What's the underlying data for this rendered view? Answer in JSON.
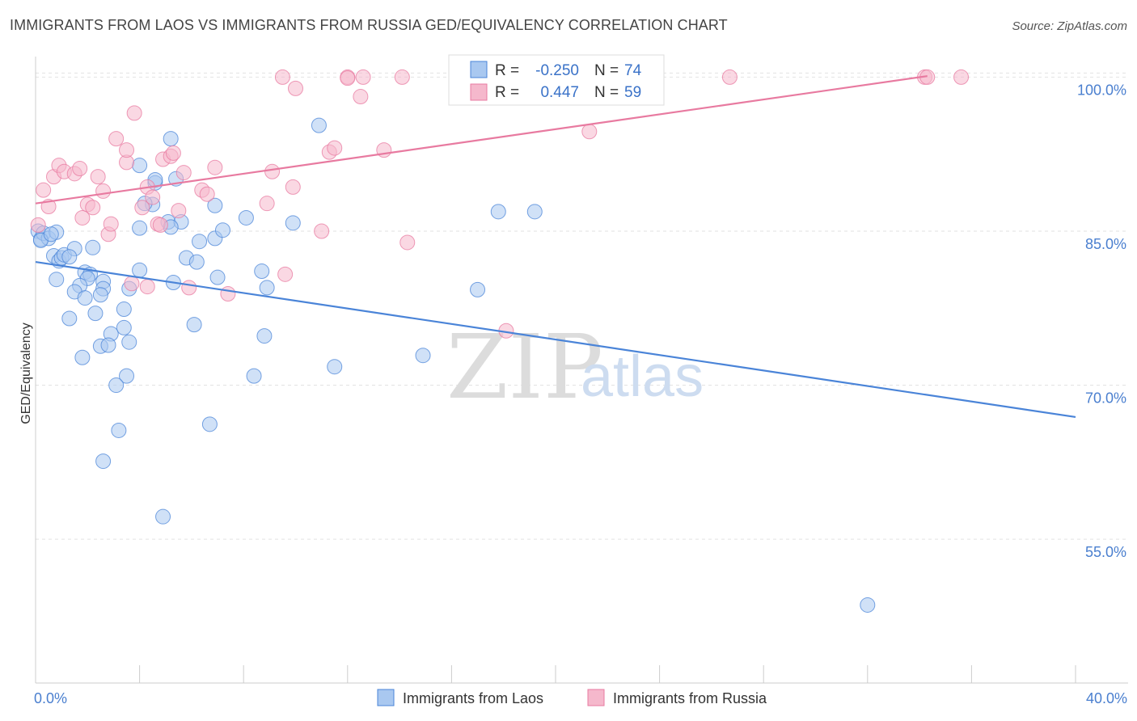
{
  "title": "IMMIGRANTS FROM LAOS VS IMMIGRANTS FROM RUSSIA GED/EQUIVALENCY CORRELATION CHART",
  "source": "Source: ZipAtlas.com",
  "watermark": {
    "zip": "ZIP",
    "atlas": "atlas"
  },
  "colors": {
    "laos": "#4a84d8",
    "russia": "#e87aa0",
    "laos_fill": "#a9c8f0",
    "russia_fill": "#f5b8cc",
    "axis_text": "#4a7fcf"
  },
  "stats": {
    "laos": {
      "r_label": "R =",
      "r": "-0.250",
      "n_label": "N =",
      "n": "74"
    },
    "russia": {
      "r_label": "R =",
      "r": "0.447",
      "n_label": "N =",
      "n": "59"
    }
  },
  "legend": {
    "laos": "Immigrants from Laos",
    "russia": "Immigrants from Russia"
  },
  "chart_data": {
    "type": "scatter",
    "xlabel": "",
    "ylabel": "GED/Equivalency",
    "xlim": [
      0,
      40
    ],
    "ylim": [
      41,
      102
    ],
    "x_tick_labels": [
      {
        "value": 0,
        "label": "0.0%"
      },
      {
        "value": 40,
        "label": "40.0%"
      }
    ],
    "y_tick_labels": [
      {
        "value": 55,
        "label": "55.0%"
      },
      {
        "value": 70,
        "label": "70.0%"
      },
      {
        "value": 85,
        "label": "85.0%"
      },
      {
        "value": 100,
        "label": "100.0%"
      }
    ],
    "grid": true,
    "legend_position": "bottom-center",
    "series": [
      {
        "name": "Immigrants from Laos",
        "color": "#4a84d8",
        "trend": {
          "x": [
            0,
            40
          ],
          "y": [
            82.0,
            66.9
          ]
        },
        "points": [
          [
            0.1,
            85.0
          ],
          [
            0.2,
            84.2
          ],
          [
            0.3,
            84.8
          ],
          [
            0.5,
            84.3
          ],
          [
            0.8,
            84.9
          ],
          [
            0.7,
            82.6
          ],
          [
            0.9,
            82.1
          ],
          [
            1.0,
            82.4
          ],
          [
            1.1,
            82.7
          ],
          [
            0.8,
            80.3
          ],
          [
            1.5,
            83.3
          ],
          [
            2.2,
            83.4
          ],
          [
            1.9,
            81.0
          ],
          [
            2.1,
            80.8
          ],
          [
            2.0,
            80.4
          ],
          [
            1.7,
            79.7
          ],
          [
            1.5,
            79.1
          ],
          [
            2.6,
            80.1
          ],
          [
            2.6,
            79.4
          ],
          [
            1.9,
            78.5
          ],
          [
            2.5,
            78.8
          ],
          [
            3.6,
            79.4
          ],
          [
            2.3,
            77.0
          ],
          [
            3.4,
            77.4
          ],
          [
            1.3,
            76.5
          ],
          [
            3.4,
            75.6
          ],
          [
            6.1,
            75.9
          ],
          [
            2.9,
            75.0
          ],
          [
            2.5,
            73.8
          ],
          [
            2.8,
            73.9
          ],
          [
            3.6,
            74.2
          ],
          [
            1.8,
            72.7
          ],
          [
            3.5,
            70.9
          ],
          [
            3.1,
            70.0
          ],
          [
            8.4,
            70.9
          ],
          [
            11.5,
            71.8
          ],
          [
            14.9,
            72.9
          ],
          [
            8.8,
            74.8
          ],
          [
            3.2,
            65.6
          ],
          [
            6.7,
            66.2
          ],
          [
            2.6,
            62.6
          ],
          [
            4.9,
            57.2
          ],
          [
            4.0,
            85.3
          ],
          [
            5.1,
            85.9
          ],
          [
            5.6,
            85.9
          ],
          [
            5.2,
            85.4
          ],
          [
            6.3,
            84.0
          ],
          [
            6.9,
            84.3
          ],
          [
            7.2,
            85.1
          ],
          [
            8.1,
            86.3
          ],
          [
            9.9,
            85.8
          ],
          [
            6.9,
            87.5
          ],
          [
            4.5,
            87.6
          ],
          [
            4.2,
            87.7
          ],
          [
            4.6,
            89.7
          ],
          [
            4.6,
            90.0
          ],
          [
            5.4,
            90.1
          ],
          [
            4.0,
            91.4
          ],
          [
            5.2,
            94.0
          ],
          [
            10.9,
            95.3
          ],
          [
            5.8,
            82.4
          ],
          [
            6.2,
            82.0
          ],
          [
            5.3,
            80.0
          ],
          [
            7.0,
            80.5
          ],
          [
            8.9,
            79.5
          ],
          [
            8.7,
            81.1
          ],
          [
            4.0,
            81.2
          ],
          [
            17.0,
            79.3
          ],
          [
            17.8,
            86.9
          ],
          [
            19.2,
            86.9
          ],
          [
            32.0,
            48.6
          ],
          [
            0.2,
            84.1
          ],
          [
            0.6,
            84.7
          ],
          [
            1.3,
            82.5
          ]
        ]
      },
      {
        "name": "Immigrants from Russia",
        "color": "#e87aa0",
        "trend": {
          "x": [
            0,
            34.3
          ],
          "y": [
            87.7,
            100.1
          ]
        },
        "points": [
          [
            0.1,
            85.6
          ],
          [
            0.3,
            89.0
          ],
          [
            0.5,
            87.4
          ],
          [
            0.7,
            90.3
          ],
          [
            0.9,
            91.4
          ],
          [
            1.1,
            90.8
          ],
          [
            1.5,
            90.6
          ],
          [
            1.7,
            91.1
          ],
          [
            1.8,
            86.3
          ],
          [
            2.0,
            87.6
          ],
          [
            2.2,
            87.3
          ],
          [
            2.4,
            90.3
          ],
          [
            2.6,
            88.9
          ],
          [
            2.8,
            84.7
          ],
          [
            2.9,
            85.7
          ],
          [
            3.1,
            94.0
          ],
          [
            3.5,
            91.7
          ],
          [
            3.5,
            92.9
          ],
          [
            3.8,
            96.5
          ],
          [
            4.1,
            87.3
          ],
          [
            4.3,
            89.3
          ],
          [
            4.5,
            88.3
          ],
          [
            4.7,
            85.7
          ],
          [
            4.8,
            85.6
          ],
          [
            4.9,
            92.0
          ],
          [
            5.2,
            92.3
          ],
          [
            5.3,
            92.6
          ],
          [
            5.5,
            87.0
          ],
          [
            5.7,
            90.7
          ],
          [
            5.9,
            79.5
          ],
          [
            6.4,
            89.0
          ],
          [
            6.6,
            88.6
          ],
          [
            6.9,
            91.2
          ],
          [
            7.4,
            78.9
          ],
          [
            8.9,
            87.7
          ],
          [
            9.1,
            90.8
          ],
          [
            9.6,
            80.8
          ],
          [
            9.9,
            89.3
          ],
          [
            9.5,
            100.0
          ],
          [
            10.0,
            98.9
          ],
          [
            11.0,
            85.0
          ],
          [
            11.3,
            92.7
          ],
          [
            11.5,
            93.1
          ],
          [
            12.0,
            100.0
          ],
          [
            12.0,
            99.9
          ],
          [
            12.6,
            100.0
          ],
          [
            12.5,
            98.1
          ],
          [
            13.4,
            92.9
          ],
          [
            14.1,
            100.0
          ],
          [
            14.3,
            83.9
          ],
          [
            16.4,
            100.0
          ],
          [
            21.3,
            94.7
          ],
          [
            18.1,
            75.3
          ],
          [
            26.7,
            100.0
          ],
          [
            34.2,
            100.0
          ],
          [
            34.3,
            100.0
          ],
          [
            35.6,
            100.0
          ],
          [
            3.7,
            79.9
          ],
          [
            4.3,
            79.6
          ]
        ]
      }
    ]
  }
}
